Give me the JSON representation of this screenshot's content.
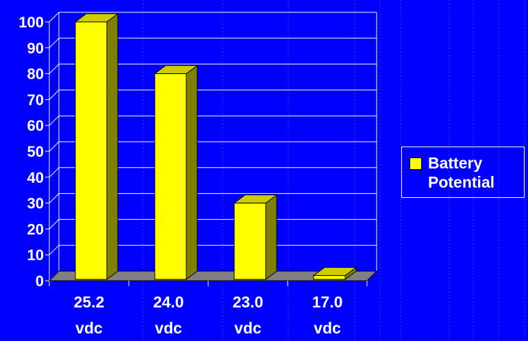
{
  "chart_data": {
    "type": "bar",
    "categories": [
      "25.2 vdc",
      "24.0 vdc",
      "23.0 vdc",
      "17.0 vdc"
    ],
    "category_lines": [
      [
        "25.2",
        "vdc"
      ],
      [
        "24.0",
        "vdc"
      ],
      [
        "23.0",
        "vdc"
      ],
      [
        "17.0",
        "vdc"
      ]
    ],
    "series": [
      {
        "name": "Battery Potential",
        "values": [
          100,
          80,
          30,
          2
        ]
      }
    ],
    "yticks": [
      "0",
      "10",
      "20",
      "30",
      "40",
      "50",
      "60",
      "70",
      "80",
      "90",
      "100"
    ],
    "ylim": [
      0,
      100
    ],
    "grid": true,
    "legend_placement": "right",
    "title": "",
    "xlabel": "",
    "ylabel": "",
    "colors": {
      "background": "#0000FF",
      "bar_front": "#FFFF00",
      "bar_side": "#808000",
      "bar_top": "#CCCC00",
      "grid": "#FFFFFF",
      "floor": "#808080",
      "text": "#FFFFFF"
    }
  },
  "legend": {
    "lines": [
      "Battery",
      "Potential"
    ]
  }
}
